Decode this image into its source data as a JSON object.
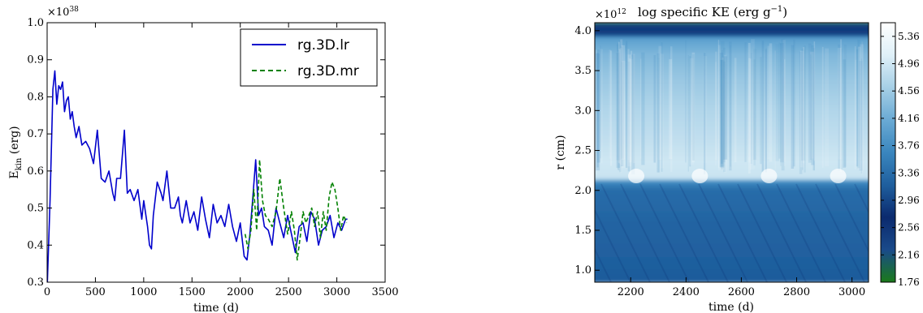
{
  "chart_data": [
    {
      "type": "line",
      "title": "",
      "xlabel": "time (d)",
      "ylabel": "E_kin (erg)",
      "ylabel_main": "E",
      "ylabel_sub": "kin",
      "ylabel_rest": " (erg)",
      "y_multiplier": "×10",
      "y_multiplier_exp": "38",
      "xlim": [
        0,
        3500
      ],
      "ylim": [
        0.3,
        1.0
      ],
      "x_ticks": [
        "0",
        "500",
        "1000",
        "1500",
        "2000",
        "2500",
        "3000",
        "3500"
      ],
      "y_ticks": [
        "0.3",
        "0.4",
        "0.5",
        "0.6",
        "0.7",
        "0.8",
        "0.9",
        "1.0"
      ],
      "grid": false,
      "legend_position": "top-right",
      "series": [
        {
          "name": "rg.3D.lr",
          "color": "#0000cc",
          "style": "solid",
          "x": [
            0,
            30,
            60,
            80,
            100,
            120,
            140,
            160,
            180,
            200,
            220,
            240,
            260,
            280,
            300,
            330,
            360,
            400,
            440,
            480,
            520,
            560,
            600,
            640,
            680,
            700,
            720,
            760,
            800,
            830,
            860,
            900,
            940,
            980,
            1000,
            1040,
            1060,
            1080,
            1100,
            1140,
            1180,
            1200,
            1240,
            1280,
            1320,
            1360,
            1380,
            1400,
            1440,
            1480,
            1520,
            1560,
            1600,
            1640,
            1680,
            1720,
            1760,
            1800,
            1840,
            1880,
            1920,
            1960,
            2000,
            2040,
            2070,
            2100,
            2130,
            2160,
            2190,
            2220,
            2250,
            2290,
            2330,
            2370,
            2410,
            2450,
            2490,
            2530,
            2570,
            2610,
            2650,
            2690,
            2730,
            2770,
            2810,
            2850,
            2890,
            2930,
            2970,
            3010,
            3050,
            3090,
            3110
          ],
          "y": [
            0.28,
            0.52,
            0.82,
            0.87,
            0.78,
            0.83,
            0.82,
            0.84,
            0.76,
            0.79,
            0.8,
            0.74,
            0.76,
            0.72,
            0.69,
            0.72,
            0.67,
            0.68,
            0.66,
            0.62,
            0.71,
            0.58,
            0.57,
            0.6,
            0.54,
            0.52,
            0.58,
            0.58,
            0.71,
            0.54,
            0.55,
            0.52,
            0.55,
            0.47,
            0.52,
            0.45,
            0.4,
            0.39,
            0.48,
            0.57,
            0.54,
            0.52,
            0.6,
            0.5,
            0.5,
            0.53,
            0.48,
            0.46,
            0.52,
            0.46,
            0.49,
            0.44,
            0.53,
            0.47,
            0.42,
            0.51,
            0.46,
            0.48,
            0.45,
            0.51,
            0.45,
            0.41,
            0.46,
            0.37,
            0.36,
            0.43,
            0.53,
            0.63,
            0.48,
            0.5,
            0.45,
            0.44,
            0.4,
            0.5,
            0.46,
            0.42,
            0.48,
            0.43,
            0.38,
            0.45,
            0.46,
            0.41,
            0.49,
            0.47,
            0.4,
            0.44,
            0.45,
            0.48,
            0.42,
            0.46,
            0.44,
            0.47,
            0.47
          ]
        },
        {
          "name": "rg.3D.mr",
          "color": "#008000",
          "style": "dashed",
          "x": [
            2050,
            2080,
            2110,
            2140,
            2170,
            2200,
            2230,
            2260,
            2290,
            2330,
            2370,
            2410,
            2450,
            2490,
            2530,
            2560,
            2590,
            2620,
            2650,
            2680,
            2710,
            2740,
            2770,
            2800,
            2830,
            2860,
            2890,
            2920,
            2950,
            2980,
            3010,
            3040,
            3070,
            3100
          ],
          "y": [
            0.43,
            0.39,
            0.44,
            0.55,
            0.44,
            0.63,
            0.52,
            0.48,
            0.47,
            0.45,
            0.49,
            0.58,
            0.5,
            0.43,
            0.49,
            0.44,
            0.36,
            0.42,
            0.49,
            0.46,
            0.48,
            0.5,
            0.45,
            0.49,
            0.42,
            0.49,
            0.44,
            0.53,
            0.57,
            0.55,
            0.5,
            0.44,
            0.48,
            0.46
          ]
        }
      ]
    },
    {
      "type": "heatmap",
      "title": "log specific KE (erg g⁻¹)",
      "title_main": "log specific KE (erg g",
      "title_sup": "−1",
      "title_end": ")",
      "xlabel": "time (d)",
      "ylabel": "r (cm)",
      "y_multiplier": "×10",
      "y_multiplier_exp": "12",
      "xlim": [
        2070,
        3060
      ],
      "ylim": [
        0.85,
        4.1
      ],
      "x_ticks": [
        "2200",
        "2400",
        "2600",
        "2800",
        "3000"
      ],
      "x_tick_values": [
        2200,
        2400,
        2600,
        2800,
        3000
      ],
      "y_ticks": [
        "1.0",
        "1.5",
        "2.0",
        "2.5",
        "3.0",
        "3.5",
        "4.0"
      ],
      "y_tick_values": [
        1.0,
        1.5,
        2.0,
        2.5,
        3.0,
        3.5,
        4.0
      ],
      "colorbar": {
        "min": 1.76,
        "max": 5.56,
        "tick_labels": [
          "5.36",
          "4.96",
          "4.56",
          "4.16",
          "3.76",
          "3.36",
          "2.96",
          "2.56",
          "2.16",
          "1.76"
        ],
        "tick_values": [
          5.36,
          4.96,
          4.56,
          4.16,
          3.76,
          3.36,
          2.96,
          2.56,
          2.16,
          1.76
        ],
        "colors": [
          "#1a7a1a",
          "#1a4a8a",
          "#0b2a6e",
          "#1f5f9e",
          "#3a86be",
          "#6aaad4",
          "#a6cfe6",
          "#dff0f8",
          "#ffffff"
        ]
      },
      "bands": [
        {
          "region": "r < 2.1",
          "approx_value": 3.3
        },
        {
          "region": "2.1 < r < 3.95",
          "approx_value": 4.6
        },
        {
          "region": "3.95 < r < 4.05",
          "approx_value": 2.8
        },
        {
          "region": "r > 4.05",
          "approx_value": 1.9
        }
      ]
    }
  ]
}
